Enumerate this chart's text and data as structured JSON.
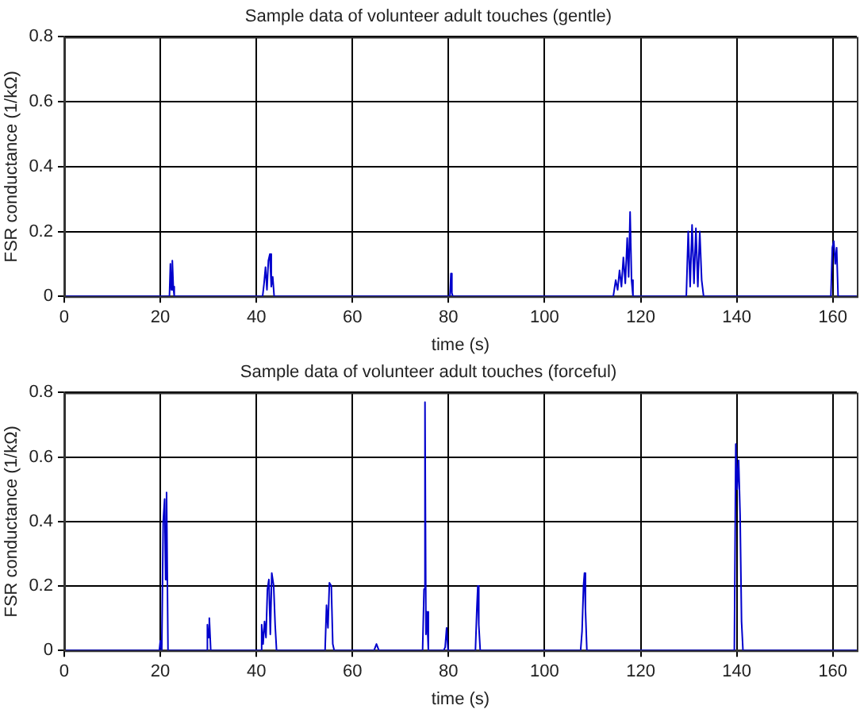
{
  "chart_data": [
    {
      "type": "line",
      "title": "Sample data of volunteer adult touches (gentle)",
      "xlabel": "time (s)",
      "ylabel": "FSR conductance (1/kΩ)",
      "color": "#0000cc",
      "grid": true,
      "xlim": [
        0,
        165
      ],
      "xticks": [
        0,
        20,
        40,
        60,
        80,
        100,
        120,
        140,
        160
      ],
      "ylim": [
        0,
        0.8
      ],
      "yticks": [
        0,
        0.2,
        0.4,
        0.6,
        0.8
      ],
      "x": [
        0,
        21.9,
        22.1,
        22.3,
        22.5,
        22.7,
        22.9,
        41.3,
        41.6,
        41.9,
        42.2,
        42.5,
        42.8,
        43.1,
        43.4,
        43.7,
        80.3,
        80.5,
        80.7,
        80.9,
        114.3,
        114.8,
        115.2,
        115.6,
        116,
        116.4,
        116.8,
        117.2,
        117.5,
        117.8,
        118.1,
        118.4,
        129.5,
        129.9,
        130.3,
        130.7,
        131.1,
        131.5,
        131.9,
        132.3,
        132.7,
        133.1,
        159.6,
        159.9,
        160.2,
        160.5,
        160.8,
        161.1,
        165
      ],
      "values": [
        0,
        0,
        0.1,
        0.02,
        0.11,
        0.03,
        0,
        0,
        0.04,
        0.09,
        0.02,
        0.11,
        0.13,
        0.03,
        0.06,
        0,
        0,
        0.07,
        0.01,
        0,
        0,
        0.05,
        0.02,
        0.08,
        0.03,
        0.12,
        0.04,
        0.18,
        0.06,
        0.26,
        0.05,
        0,
        0,
        0.2,
        0.03,
        0.22,
        0.04,
        0.21,
        0.03,
        0.2,
        0.05,
        0,
        0,
        0.15,
        0.17,
        0.1,
        0.15,
        0,
        0
      ]
    },
    {
      "type": "line",
      "title": "Sample data of volunteer adult touches (forceful)",
      "xlabel": "time (s)",
      "ylabel": "FSR conductance (1/kΩ)",
      "color": "#0000cc",
      "grid": true,
      "xlim": [
        0,
        165
      ],
      "xticks": [
        0,
        20,
        40,
        60,
        80,
        100,
        120,
        140,
        160
      ],
      "ylim": [
        0,
        0.8
      ],
      "yticks": [
        0,
        0.2,
        0.4,
        0.6,
        0.8
      ],
      "x": [
        0,
        19.8,
        20,
        20.3,
        20.6,
        20.9,
        21.1,
        21.3,
        21.6,
        29.6,
        29.8,
        30,
        30.2,
        30.5,
        40.8,
        41.1,
        41.4,
        41.7,
        42,
        42.3,
        42.6,
        42.9,
        43.2,
        43.6,
        43.9,
        44.2,
        54.3,
        54.6,
        54.9,
        55.2,
        55.6,
        55.9,
        56.2,
        64.5,
        65,
        65.5,
        74.6,
        74.9,
        75.1,
        75.3,
        75.5,
        75.8,
        79,
        79.3,
        79.6,
        79.9,
        85.6,
        85.9,
        86.1,
        86.3,
        86.6,
        107.5,
        107.8,
        108.1,
        108.3,
        108.5,
        108.8,
        139.5,
        139.8,
        140.1,
        140.4,
        140.7,
        141,
        141.3,
        165
      ],
      "values": [
        0,
        0,
        0.03,
        0,
        0.4,
        0.47,
        0.22,
        0.49,
        0,
        0,
        0.08,
        0.04,
        0.1,
        0,
        0,
        0.08,
        0.02,
        0.09,
        0.04,
        0.19,
        0.22,
        0.05,
        0.24,
        0.2,
        0.08,
        0,
        0,
        0.14,
        0.07,
        0.21,
        0.2,
        0.02,
        0,
        0,
        0.02,
        0,
        0,
        0.19,
        0.77,
        0.05,
        0.12,
        0,
        0,
        0.01,
        0.07,
        0,
        0,
        0.13,
        0.2,
        0.08,
        0,
        0,
        0.06,
        0.2,
        0.24,
        0.13,
        0,
        0,
        0.64,
        0.5,
        0.59,
        0.42,
        0.09,
        0,
        0
      ]
    }
  ]
}
